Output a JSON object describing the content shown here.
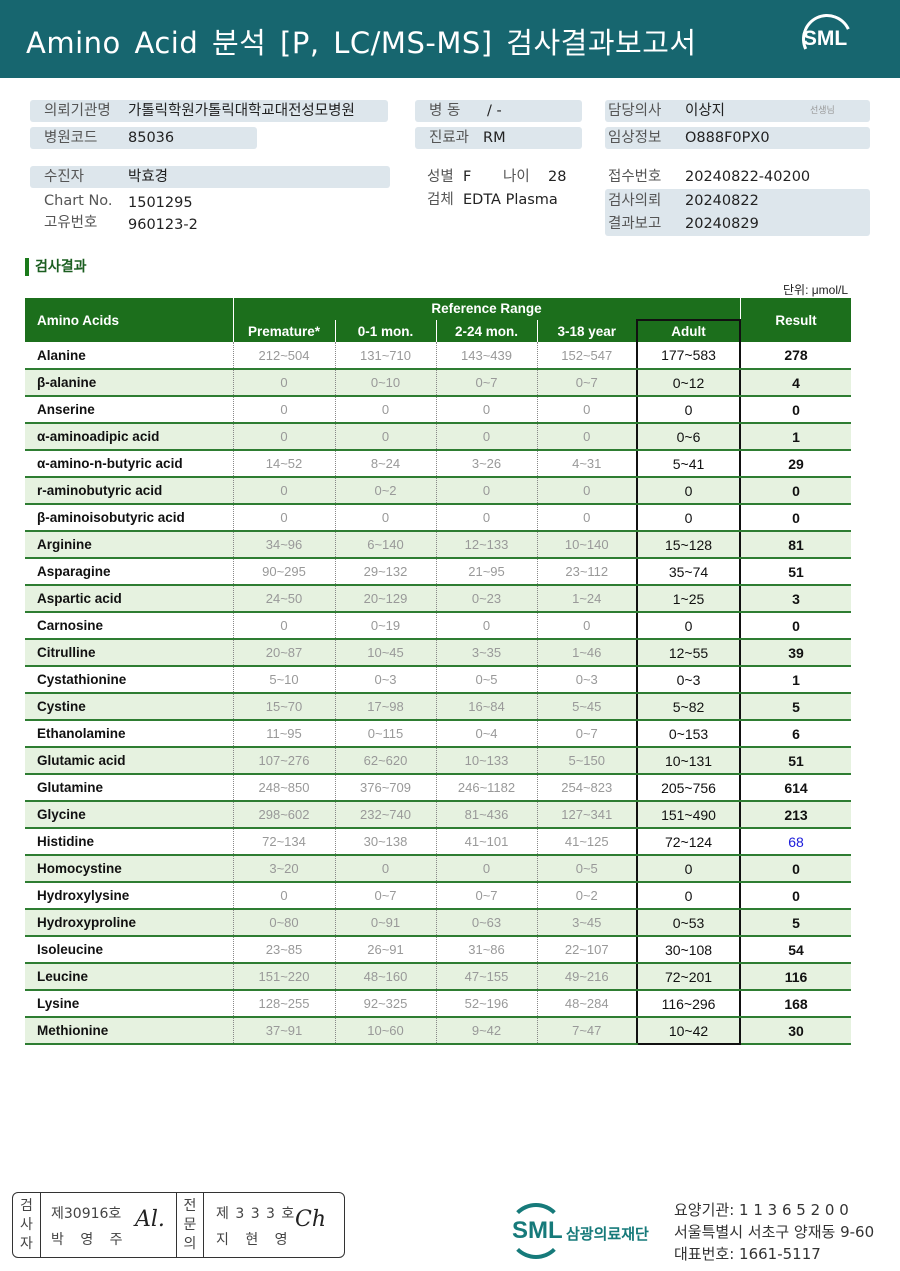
{
  "header": {
    "title": "Amino  Acid 분석 [P,  LC/MS-MS] 검사결과보고서",
    "logo": "SML"
  },
  "info": {
    "institution": {
      "label": "의뢰기관명",
      "value": "가톨릭학원가톨릭대학교대전성모병원"
    },
    "hospital_code": {
      "label": "병원코드",
      "value": "85036"
    },
    "ward": {
      "label": "병  동",
      "value": "/ -"
    },
    "department": {
      "label": "진료과",
      "value": "RM"
    },
    "doctor": {
      "label": "담당의사",
      "value": "이상지",
      "suffix": "선생님"
    },
    "clinical_info": {
      "label": "임상정보",
      "value": "O888F0PX0"
    },
    "patient": {
      "label": "수진자",
      "value": "박효경"
    },
    "chart_no": {
      "label": "Chart No.",
      "value": "1501295"
    },
    "unique_no": {
      "label": "고유번호",
      "value": "960123-2"
    },
    "sex": {
      "label": "성별",
      "value": "F"
    },
    "age": {
      "label": "나이",
      "value": "28"
    },
    "specimen": {
      "label": "검체",
      "value": "EDTA Plasma"
    },
    "receipt_no": {
      "label": "접수번호",
      "value": "20240822-40200"
    },
    "request_date": {
      "label": "검사의뢰",
      "value": "20240822"
    },
    "report_date": {
      "label": "결과보고",
      "value": "20240829"
    }
  },
  "results": {
    "section_title": "검사결과",
    "unit": "단위: μmol/L",
    "headers": {
      "name": "Amino Acids",
      "group": "Reference Range",
      "cols": [
        "Premature*",
        "0-1 mon.",
        "2-24 mon.",
        "3-18 year",
        "Adult"
      ],
      "result": "Result"
    },
    "rows": [
      [
        "Alanine",
        "212~504",
        "131~710",
        "143~439",
        "152~547",
        "177~583",
        "278"
      ],
      [
        "β-alanine",
        "0",
        "0~10",
        "0~7",
        "0~7",
        "0~12",
        "4"
      ],
      [
        "Anserine",
        "0",
        "0",
        "0",
        "0",
        "0",
        "0"
      ],
      [
        "α-aminoadipic acid",
        "0",
        "0",
        "0",
        "0",
        "0~6",
        "1"
      ],
      [
        "α-amino-n-butyric acid",
        "14~52",
        "8~24",
        "3~26",
        "4~31",
        "5~41",
        "29"
      ],
      [
        "r-aminobutyric acid",
        "0",
        "0~2",
        "0",
        "0",
        "0",
        "0"
      ],
      [
        "β-aminoisobutyric acid",
        "0",
        "0",
        "0",
        "0",
        "0",
        "0"
      ],
      [
        "Arginine",
        "34~96",
        "6~140",
        "12~133",
        "10~140",
        "15~128",
        "81"
      ],
      [
        "Asparagine",
        "90~295",
        "29~132",
        "21~95",
        "23~112",
        "35~74",
        "51"
      ],
      [
        "Aspartic acid",
        "24~50",
        "20~129",
        "0~23",
        "1~24",
        "1~25",
        "3"
      ],
      [
        "Carnosine",
        "0",
        "0~19",
        "0",
        "0",
        "0",
        "0"
      ],
      [
        "Citrulline",
        "20~87",
        "10~45",
        "3~35",
        "1~46",
        "12~55",
        "39"
      ],
      [
        "Cystathionine",
        "5~10",
        "0~3",
        "0~5",
        "0~3",
        "0~3",
        "1"
      ],
      [
        "Cystine",
        "15~70",
        "17~98",
        "16~84",
        "5~45",
        "5~82",
        "5"
      ],
      [
        "Ethanolamine",
        "11~95",
        "0~115",
        "0~4",
        "0~7",
        "0~153",
        "6"
      ],
      [
        "Glutamic acid",
        "107~276",
        "62~620",
        "10~133",
        "5~150",
        "10~131",
        "51"
      ],
      [
        "Glutamine",
        "248~850",
        "376~709",
        "246~1182",
        "254~823",
        "205~756",
        "614"
      ],
      [
        "Glycine",
        "298~602",
        "232~740",
        "81~436",
        "127~341",
        "151~490",
        "213"
      ],
      [
        "Histidine",
        "72~134",
        "30~138",
        "41~101",
        "41~125",
        "72~124",
        "68"
      ],
      [
        "Homocystine",
        "3~20",
        "0",
        "0",
        "0~5",
        "0",
        "0"
      ],
      [
        "Hydroxylysine",
        "0",
        "0~7",
        "0~7",
        "0~2",
        "0",
        "0"
      ],
      [
        "Hydroxyproline",
        "0~80",
        "0~91",
        "0~63",
        "3~45",
        "0~53",
        "5"
      ],
      [
        "Isoleucine",
        "23~85",
        "26~91",
        "31~86",
        "22~107",
        "30~108",
        "54"
      ],
      [
        "Leucine",
        "151~220",
        "48~160",
        "47~155",
        "49~216",
        "72~201",
        "116"
      ],
      [
        "Lysine",
        "128~255",
        "92~325",
        "52~196",
        "48~284",
        "116~296",
        "168"
      ],
      [
        "Methionine",
        "37~91",
        "10~60",
        "9~42",
        "7~47",
        "10~42",
        "30"
      ]
    ],
    "low_flag_color": "#1a1adb",
    "low_rows": [
      "Histidine"
    ]
  },
  "footer": {
    "tester": {
      "label": "검사자",
      "license": "제30916호",
      "name": "박 영 주"
    },
    "specialist": {
      "label": "전문의",
      "license": "제 3 3 3 호",
      "name": "지 현 영"
    },
    "org_logo": "SML",
    "org_name": "삼광의료재단",
    "care_institution": "요양기관: 1 1 3 6 5 2 0 0",
    "address": "서울특별시 서초구 양재동 9-60",
    "phone": "대표번호: 1661-5117"
  },
  "colors": {
    "header_bar": "#17666f",
    "table_header": "#1c6f1c",
    "row_alt": "#e6f2e0"
  }
}
